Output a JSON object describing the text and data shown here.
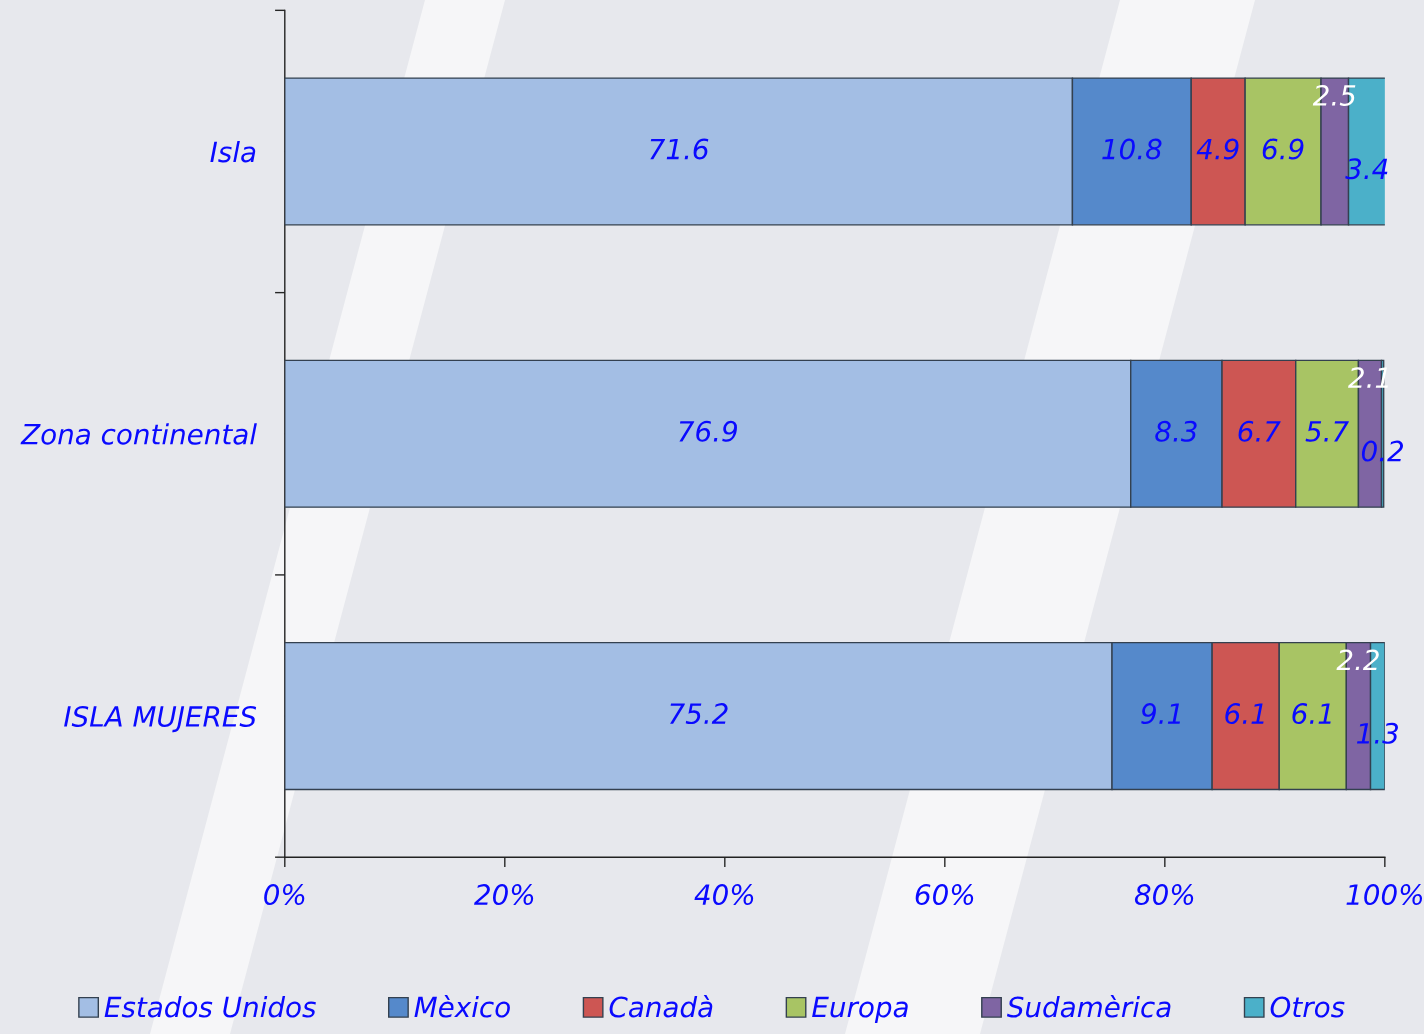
{
  "chart_data": {
    "type": "bar",
    "orientation": "horizontal",
    "stacked": true,
    "categories": [
      "Isla",
      "Zona continental",
      "ISLA MUJERES"
    ],
    "series": [
      {
        "name": "Estados Unidos",
        "color": "#a3bee4",
        "values": [
          71.6,
          76.9,
          75.2
        ]
      },
      {
        "name": "Mèxico",
        "color": "#5589cb",
        "values": [
          10.8,
          8.3,
          9.1
        ]
      },
      {
        "name": "Canadà",
        "color": "#cd5653",
        "values": [
          4.9,
          6.7,
          6.1
        ]
      },
      {
        "name": "Europa",
        "color": "#a8c464",
        "values": [
          6.9,
          5.7,
          6.1
        ]
      },
      {
        "name": "Sudamèrica",
        "color": "#7f65a3",
        "values": [
          2.5,
          2.1,
          2.2
        ]
      },
      {
        "name": "Otros",
        "color": "#4bb0c9",
        "values": [
          3.4,
          0.2,
          1.3
        ]
      }
    ],
    "xlim": [
      0,
      100
    ],
    "xticks": [
      {
        "value": 0,
        "label": "0%"
      },
      {
        "value": 20,
        "label": "20%"
      },
      {
        "value": 40,
        "label": "40%"
      },
      {
        "value": 60,
        "label": "60%"
      },
      {
        "value": 80,
        "label": "80%"
      },
      {
        "value": 100,
        "label": "100%"
      }
    ],
    "data_labels": true,
    "legend": "bottom"
  }
}
